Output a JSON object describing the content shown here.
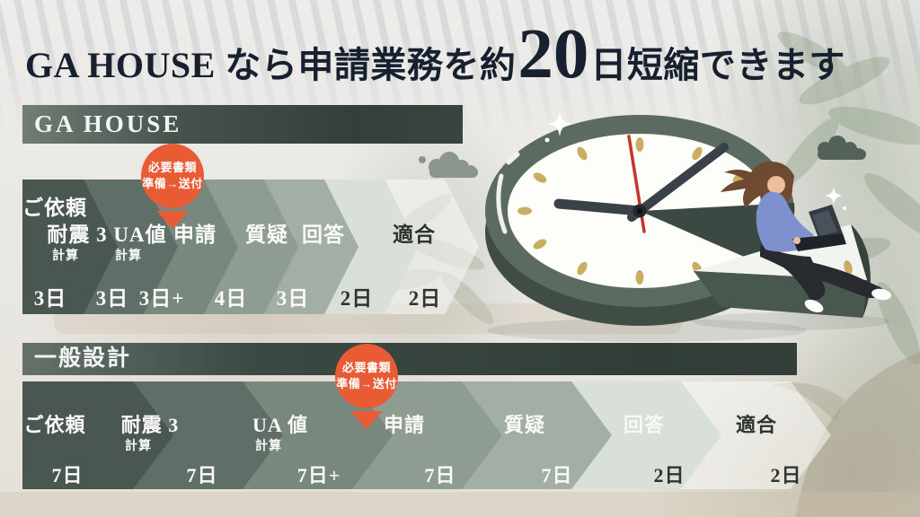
{
  "title": {
    "prefix": "GA HOUSE なら申請業務を約",
    "number": "20",
    "suffix": "日短縮できます"
  },
  "flows": [
    {
      "name": "GA HOUSE",
      "badge": {
        "line1": "必要書類",
        "line2": "準備→送付"
      },
      "steps": [
        {
          "label": "ご依頼",
          "sub": "",
          "days": "3日"
        },
        {
          "label": "耐震 3",
          "sub": "計算",
          "days": "3日"
        },
        {
          "label": "UA値",
          "sub": "計算",
          "days": "3日+"
        },
        {
          "label": "申請",
          "sub": "",
          "days": "4日"
        },
        {
          "label": "質疑",
          "sub": "",
          "days": "3日"
        },
        {
          "label": "回答",
          "sub": "",
          "days": "2日"
        },
        {
          "label": "適合",
          "sub": "",
          "days": "2日"
        }
      ]
    },
    {
      "name": "一般設計",
      "badge": {
        "line1": "必要書類",
        "line2": "準備→送付"
      },
      "steps": [
        {
          "label": "ご依頼",
          "sub": "",
          "days": "7日"
        },
        {
          "label": "耐震 3",
          "sub": "計算",
          "days": "7日"
        },
        {
          "label": "UA 値",
          "sub": "計算",
          "days": "7日+"
        },
        {
          "label": "申請",
          "sub": "",
          "days": "7日"
        },
        {
          "label": "質疑",
          "sub": "",
          "days": "7日"
        },
        {
          "label": "回答",
          "sub": "",
          "days": "2日"
        },
        {
          "label": "適合",
          "sub": "",
          "days": "2日"
        }
      ]
    }
  ],
  "colors": {
    "accent_orange": "#e85b35",
    "title_navy": "#17202e",
    "header_bar_dark": "#343f3a",
    "clock_green": "#5c6b61",
    "tick_gold": "#c9ad62",
    "second_hand_red": "#c5352a",
    "sweater_blue": "#7e90ce",
    "chevrons": [
      "#4a5750",
      "#5f6e66",
      "#79887e",
      "#8e9c92",
      "#a3afa4",
      "#d9e0d7",
      "rgba(249,250,248,0.55)"
    ]
  }
}
